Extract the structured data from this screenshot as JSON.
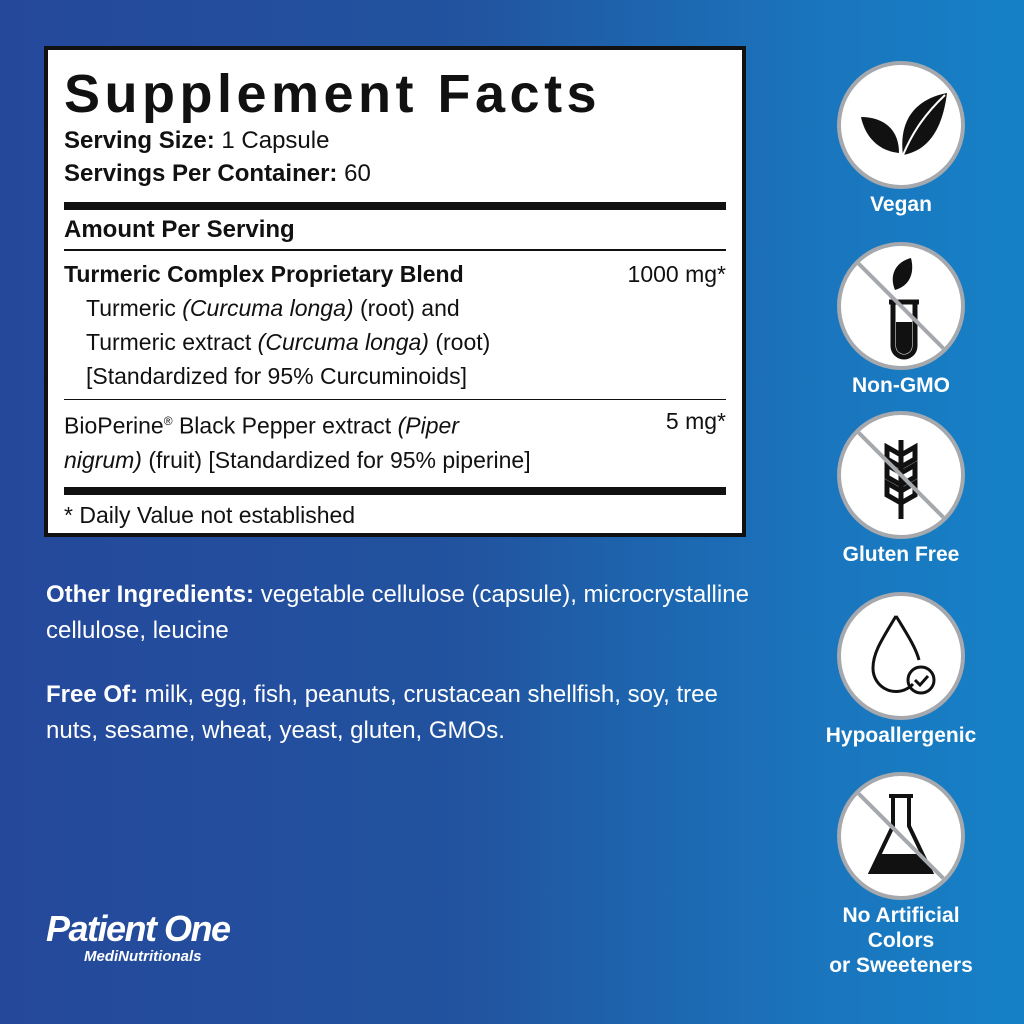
{
  "facts": {
    "title": "Supplement Facts",
    "serving_size_label": "Serving Size:",
    "serving_size": " 1 Capsule",
    "servings_label": "Servings Per Container:",
    "servings": " 60",
    "amount_header": "Amount Per Serving",
    "blend_name": "Turmeric Complex Proprietary Blend",
    "blend_amount": "1000 mg*",
    "blend_l1a": "Turmeric ",
    "blend_l1b": "(Curcuma longa)",
    "blend_l1c": " (root) and",
    "blend_l2a": "Turmeric extract ",
    "blend_l2b": "(Curcuma longa)",
    "blend_l2c": " (root)",
    "blend_l3": "[Standardized for 95% Curcuminoids]",
    "bio_a": "BioPerine",
    "bio_reg": "®",
    "bio_b": " Black Pepper extract ",
    "bio_c": "(Piper",
    "bio_d": "nigrum)",
    "bio_e": " (fruit) [Standardized for 95% piperine]",
    "bio_amount": "5 mg*",
    "footnote": "* Daily Value not established"
  },
  "other": {
    "label": "Other Ingredients:",
    "text": " vegetable cellulose (capsule), microcrystalline cellulose, leucine"
  },
  "free": {
    "label": "Free Of:",
    "text": " milk, egg, fish, peanuts, crustacean shellfish, soy, tree nuts, sesame, wheat, yeast, gluten, GMOs."
  },
  "badges": [
    {
      "label": "Vegan",
      "icon": "leaf-icon"
    },
    {
      "label": "Non-GMO",
      "icon": "test-tube-leaf-icon"
    },
    {
      "label": "Gluten Free",
      "icon": "wheat-icon"
    },
    {
      "label": "Hypoallergenic",
      "icon": "drop-check-icon"
    },
    {
      "label": "No Artificial Colors",
      "label2": "or Sweeteners",
      "icon": "flask-icon"
    }
  ],
  "logo": {
    "name": "Patient One",
    "sub": "MediNutritionals"
  }
}
